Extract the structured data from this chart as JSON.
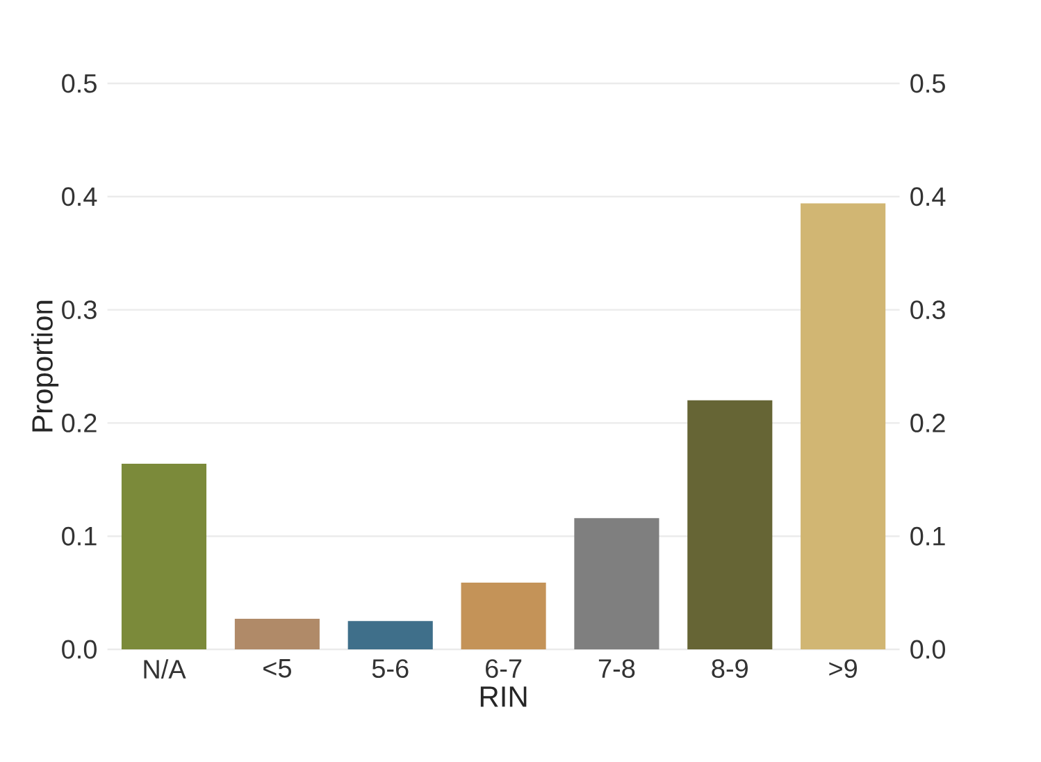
{
  "chart_data": {
    "type": "bar",
    "xlabel": "RIN",
    "ylabel": "Proportion",
    "categories": [
      "N/A",
      "<5",
      "5-6",
      "6-7",
      "7-8",
      "8-9",
      ">9"
    ],
    "values": [
      0.164,
      0.027,
      0.025,
      0.059,
      0.116,
      0.22,
      0.394
    ],
    "colors": [
      "#7b8a3a",
      "#b08a68",
      "#3f6f8a",
      "#c49358",
      "#7f7f7f",
      "#666535",
      "#d1b673"
    ],
    "ylim": [
      0,
      0.5
    ],
    "yticks": [
      {
        "value": 0,
        "label": "0.0"
      },
      0.1,
      0.2,
      0.3,
      0.4,
      0.5
    ],
    "y2lim": [
      0,
      0.5
    ],
    "y2ticks": [
      {
        "value": 0,
        "label": "0.0"
      },
      0.1,
      0.2,
      0.3,
      0.4,
      0.5
    ],
    "grid": "y"
  }
}
